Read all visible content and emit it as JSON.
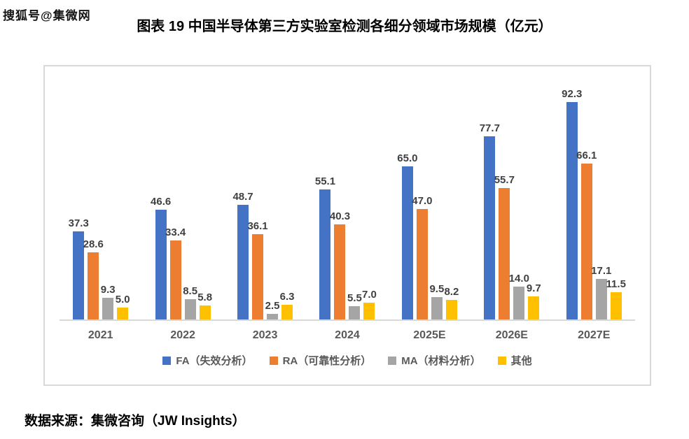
{
  "watermark": "搜狐号@集微网",
  "title": "图表 19  中国半导体第三方实验室检测各细分领域市场规模（亿元）",
  "source": "数据来源：集微咨询（JW Insights）",
  "chart_data": {
    "type": "bar",
    "title": "中国半导体第三方实验室检测各细分领域市场规模（亿元）",
    "unit": "亿元",
    "categories": [
      "2021",
      "2022",
      "2023",
      "2024",
      "2025E",
      "2026E",
      "2027E"
    ],
    "series": [
      {
        "key": "fa",
        "name": "FA（失效分析）",
        "color": "#4472C4",
        "values": [
          37.3,
          46.6,
          48.7,
          55.1,
          65.0,
          77.7,
          92.3
        ]
      },
      {
        "key": "ra",
        "name": "RA（可靠性分析）",
        "color": "#ED7D31",
        "values": [
          28.6,
          33.4,
          36.1,
          40.3,
          47.0,
          55.7,
          66.1
        ]
      },
      {
        "key": "ma",
        "name": "MA（材料分析）",
        "color": "#A5A5A5",
        "values": [
          9.3,
          8.5,
          2.5,
          5.5,
          9.5,
          14.0,
          17.1
        ]
      },
      {
        "key": "other",
        "name": "其他",
        "color": "#FFC000",
        "values": [
          5.0,
          5.8,
          6.3,
          7.0,
          8.2,
          9.7,
          11.5
        ]
      }
    ],
    "ylim": [
      0,
      100
    ],
    "grid": false,
    "value_labels": true,
    "value_label_decimals": 1,
    "legend_position": "bottom",
    "axis_color": "#D9D9D9",
    "label_color": "#404040",
    "tick_color": "#595959"
  }
}
